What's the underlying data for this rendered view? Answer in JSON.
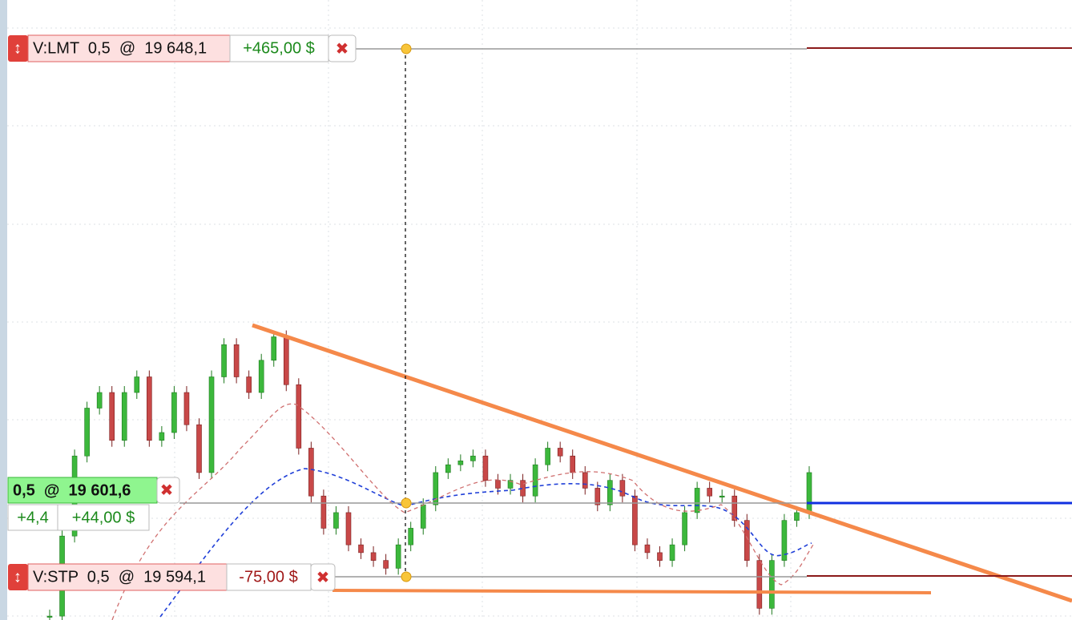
{
  "orders": [
    {
      "label": "V:LMT  0,5  @  19 648,1",
      "pnl": "+465,00 $"
    },
    {
      "label": "V:STP  0,5  @  19 594,1",
      "pnl": "-75,00 $"
    }
  ],
  "position": {
    "label": "0,5  @  19 601,6",
    "points": "+4,4",
    "pnl": "+44,00 $"
  },
  "chart_data": {
    "type": "candlestick",
    "ylim": [
      19589.6,
      19653.1
    ],
    "closes": [
      19590.0,
      19598.2,
      19606.4,
      19611.3,
      19612.9,
      19608.0,
      19612.9,
      19614.5,
      19608.0,
      19608.8,
      19612.9,
      19609.6,
      19604.7,
      19614.5,
      19617.8,
      19614.5,
      19612.9,
      19616.2,
      19618.6,
      19613.7,
      19607.2,
      19602.3,
      19599.0,
      19600.6,
      19597.3,
      19596.5,
      19595.7,
      19594.9,
      19597.3,
      19599.0,
      19601.4,
      19604.7,
      19605.5,
      19605.9,
      19606.4,
      19603.9,
      19603.1,
      19603.9,
      19602.3,
      19605.5,
      19607.2,
      19606.4,
      19604.7,
      19603.1,
      19601.4,
      19603.9,
      19602.3,
      19597.3,
      19596.5,
      19595.7,
      19597.3,
      19600.6,
      19603.1,
      19602.3,
      19602.3,
      19599.8,
      19595.7,
      19590.8,
      19595.7,
      19599.8,
      19600.6,
      19604.7
    ]
  }
}
